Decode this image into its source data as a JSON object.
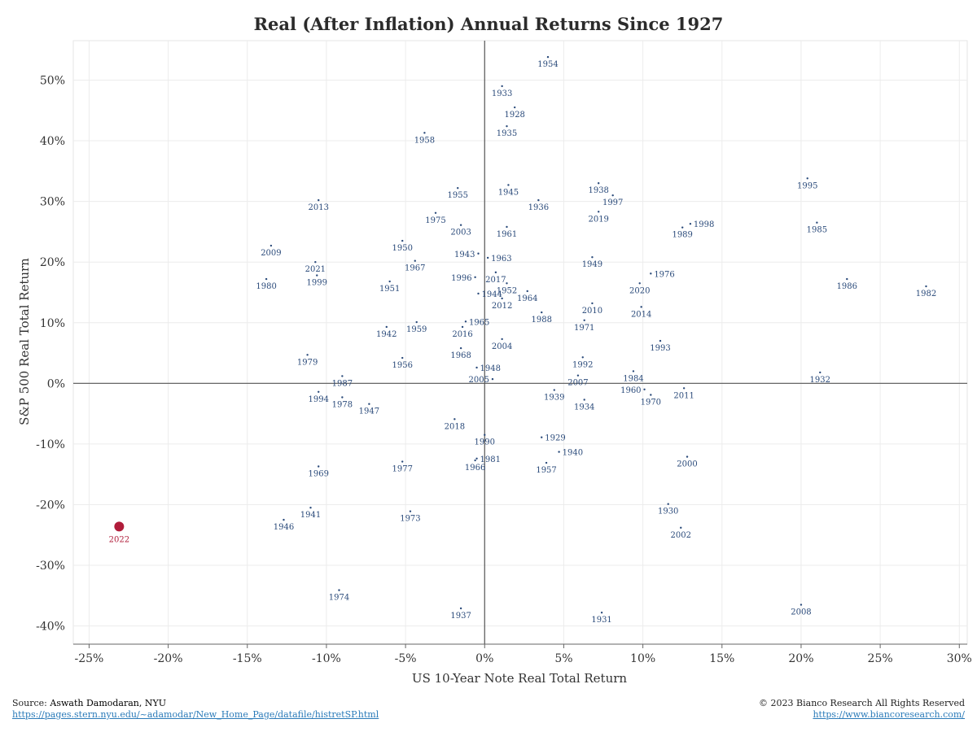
{
  "chart_data": {
    "type": "scatter",
    "title": "Real (After Inflation) Annual Returns Since 1927",
    "xlabel": "US 10-Year Note Real Total Return",
    "ylabel": "S&P 500 Real Total Return",
    "xlim": [
      -0.26,
      0.305
    ],
    "ylim": [
      -0.43,
      0.565
    ],
    "x_ticks": [
      -0.25,
      -0.2,
      -0.15,
      -0.1,
      -0.05,
      0,
      0.05,
      0.1,
      0.15,
      0.2,
      0.25,
      0.3
    ],
    "x_tick_labels": [
      "-25%",
      "-20%",
      "-15%",
      "-10%",
      "-5%",
      "0%",
      "5%",
      "10%",
      "15%",
      "20%",
      "25%",
      "30%"
    ],
    "y_ticks": [
      -0.4,
      -0.3,
      -0.2,
      -0.1,
      0,
      0.1,
      0.2,
      0.3,
      0.4,
      0.5
    ],
    "y_tick_labels": [
      "-40%",
      "-30%",
      "-20%",
      "-10%",
      "0%",
      "10%",
      "20%",
      "30%",
      "40%",
      "50%"
    ],
    "grid": true,
    "highlight": {
      "label": "2022",
      "x": -0.231,
      "y": -0.236,
      "color": "#b01c3a"
    },
    "point_color": "#2a4a7a",
    "points": [
      {
        "label": "1954",
        "x": 0.04,
        "y": 0.538,
        "lp": "below"
      },
      {
        "label": "1933",
        "x": 0.011,
        "y": 0.49,
        "lp": "below"
      },
      {
        "label": "1928",
        "x": 0.019,
        "y": 0.455,
        "lp": "below"
      },
      {
        "label": "1935",
        "x": 0.014,
        "y": 0.424,
        "lp": "below"
      },
      {
        "label": "1958",
        "x": -0.038,
        "y": 0.413,
        "lp": "below"
      },
      {
        "label": "1995",
        "x": 0.204,
        "y": 0.338,
        "lp": "below"
      },
      {
        "label": "1938",
        "x": 0.072,
        "y": 0.33,
        "lp": "below"
      },
      {
        "label": "1945",
        "x": 0.015,
        "y": 0.327,
        "lp": "below"
      },
      {
        "label": "1955",
        "x": -0.017,
        "y": 0.322,
        "lp": "below"
      },
      {
        "label": "1997",
        "x": 0.081,
        "y": 0.31,
        "lp": "below"
      },
      {
        "label": "1936",
        "x": 0.034,
        "y": 0.302,
        "lp": "below"
      },
      {
        "label": "2013",
        "x": -0.105,
        "y": 0.302,
        "lp": "below"
      },
      {
        "label": "1975",
        "x": -0.031,
        "y": 0.281,
        "lp": "below"
      },
      {
        "label": "2019",
        "x": 0.072,
        "y": 0.283,
        "lp": "below"
      },
      {
        "label": "1998",
        "x": 0.13,
        "y": 0.263,
        "lp": "right"
      },
      {
        "label": "1985",
        "x": 0.21,
        "y": 0.265,
        "lp": "below"
      },
      {
        "label": "2003",
        "x": -0.015,
        "y": 0.261,
        "lp": "below"
      },
      {
        "label": "1961",
        "x": 0.014,
        "y": 0.258,
        "lp": "below"
      },
      {
        "label": "1989",
        "x": 0.125,
        "y": 0.257,
        "lp": "below"
      },
      {
        "label": "2009",
        "x": -0.135,
        "y": 0.227,
        "lp": "below"
      },
      {
        "label": "1950",
        "x": -0.052,
        "y": 0.235,
        "lp": "below"
      },
      {
        "label": "1943",
        "x": -0.004,
        "y": 0.214,
        "lp": "left"
      },
      {
        "label": "1963",
        "x": 0.002,
        "y": 0.207,
        "lp": "right"
      },
      {
        "label": "1949",
        "x": 0.068,
        "y": 0.208,
        "lp": "below"
      },
      {
        "label": "2021",
        "x": -0.107,
        "y": 0.2,
        "lp": "below"
      },
      {
        "label": "1967",
        "x": -0.044,
        "y": 0.202,
        "lp": "below"
      },
      {
        "label": "1976",
        "x": 0.105,
        "y": 0.181,
        "lp": "right"
      },
      {
        "label": "1996",
        "x": -0.006,
        "y": 0.175,
        "lp": "left"
      },
      {
        "label": "2017",
        "x": 0.007,
        "y": 0.183,
        "lp": "below"
      },
      {
        "label": "1986",
        "x": 0.229,
        "y": 0.172,
        "lp": "below"
      },
      {
        "label": "1999",
        "x": -0.106,
        "y": 0.178,
        "lp": "below"
      },
      {
        "label": "1980",
        "x": -0.138,
        "y": 0.172,
        "lp": "below"
      },
      {
        "label": "1951",
        "x": -0.06,
        "y": 0.168,
        "lp": "below"
      },
      {
        "label": "1952",
        "x": 0.014,
        "y": 0.165,
        "lp": "below"
      },
      {
        "label": "2020",
        "x": 0.098,
        "y": 0.165,
        "lp": "below"
      },
      {
        "label": "1982",
        "x": 0.279,
        "y": 0.16,
        "lp": "below"
      },
      {
        "label": "1944",
        "x": -0.004,
        "y": 0.148,
        "lp": "right"
      },
      {
        "label": "1964",
        "x": 0.027,
        "y": 0.152,
        "lp": "below"
      },
      {
        "label": "2012",
        "x": 0.011,
        "y": 0.14,
        "lp": "below"
      },
      {
        "label": "2010",
        "x": 0.068,
        "y": 0.132,
        "lp": "below"
      },
      {
        "label": "2014",
        "x": 0.099,
        "y": 0.126,
        "lp": "below"
      },
      {
        "label": "1988",
        "x": 0.036,
        "y": 0.117,
        "lp": "below"
      },
      {
        "label": "1971",
        "x": 0.063,
        "y": 0.104,
        "lp": "below"
      },
      {
        "label": "1965",
        "x": -0.012,
        "y": 0.102,
        "lp": "right"
      },
      {
        "label": "1959",
        "x": -0.043,
        "y": 0.101,
        "lp": "below"
      },
      {
        "label": "1942",
        "x": -0.062,
        "y": 0.093,
        "lp": "below"
      },
      {
        "label": "2016",
        "x": -0.014,
        "y": 0.093,
        "lp": "below"
      },
      {
        "label": "2004",
        "x": 0.011,
        "y": 0.073,
        "lp": "below"
      },
      {
        "label": "1993",
        "x": 0.111,
        "y": 0.07,
        "lp": "below"
      },
      {
        "label": "1968",
        "x": -0.015,
        "y": 0.058,
        "lp": "below"
      },
      {
        "label": "1979",
        "x": -0.112,
        "y": 0.047,
        "lp": "below"
      },
      {
        "label": "1956",
        "x": -0.052,
        "y": 0.042,
        "lp": "below"
      },
      {
        "label": "1992",
        "x": 0.062,
        "y": 0.043,
        "lp": "below"
      },
      {
        "label": "1948",
        "x": -0.005,
        "y": 0.026,
        "lp": "right"
      },
      {
        "label": "1984",
        "x": 0.094,
        "y": 0.02,
        "lp": "below"
      },
      {
        "label": "1932",
        "x": 0.212,
        "y": 0.018,
        "lp": "below"
      },
      {
        "label": "2007",
        "x": 0.059,
        "y": 0.013,
        "lp": "below"
      },
      {
        "label": "1987",
        "x": -0.09,
        "y": 0.012,
        "lp": "below"
      },
      {
        "label": "2005",
        "x": 0.005,
        "y": 0.007,
        "lp": "left"
      },
      {
        "label": "1960",
        "x": 0.101,
        "y": -0.01,
        "lp": "left"
      },
      {
        "label": "1939",
        "x": 0.044,
        "y": -0.011,
        "lp": "below"
      },
      {
        "label": "2011",
        "x": 0.126,
        "y": -0.008,
        "lp": "below"
      },
      {
        "label": "1994",
        "x": -0.105,
        "y": -0.014,
        "lp": "below"
      },
      {
        "label": "1970",
        "x": 0.105,
        "y": -0.019,
        "lp": "below"
      },
      {
        "label": "1978",
        "x": -0.09,
        "y": -0.023,
        "lp": "below"
      },
      {
        "label": "1934",
        "x": 0.063,
        "y": -0.027,
        "lp": "below"
      },
      {
        "label": "1947",
        "x": -0.073,
        "y": -0.034,
        "lp": "below"
      },
      {
        "label": "2018",
        "x": -0.019,
        "y": -0.059,
        "lp": "below"
      },
      {
        "label": "1929",
        "x": 0.036,
        "y": -0.089,
        "lp": "right"
      },
      {
        "label": "1990",
        "x": 0.0,
        "y": -0.085,
        "lp": "below"
      },
      {
        "label": "1940",
        "x": 0.047,
        "y": -0.113,
        "lp": "right"
      },
      {
        "label": "1981",
        "x": -0.005,
        "y": -0.124,
        "lp": "right"
      },
      {
        "label": "2000",
        "x": 0.128,
        "y": -0.121,
        "lp": "below"
      },
      {
        "label": "1977",
        "x": -0.052,
        "y": -0.129,
        "lp": "below"
      },
      {
        "label": "1966",
        "x": -0.006,
        "y": -0.127,
        "lp": "below"
      },
      {
        "label": "1957",
        "x": 0.039,
        "y": -0.131,
        "lp": "below"
      },
      {
        "label": "1969",
        "x": -0.105,
        "y": -0.137,
        "lp": "below"
      },
      {
        "label": "1930",
        "x": 0.116,
        "y": -0.199,
        "lp": "below"
      },
      {
        "label": "1941",
        "x": -0.11,
        "y": -0.205,
        "lp": "below"
      },
      {
        "label": "1973",
        "x": -0.047,
        "y": -0.211,
        "lp": "below"
      },
      {
        "label": "1946",
        "x": -0.127,
        "y": -0.225,
        "lp": "below"
      },
      {
        "label": "2002",
        "x": 0.124,
        "y": -0.238,
        "lp": "below"
      },
      {
        "label": "1974",
        "x": -0.092,
        "y": -0.341,
        "lp": "below"
      },
      {
        "label": "1937",
        "x": -0.015,
        "y": -0.371,
        "lp": "below"
      },
      {
        "label": "2008",
        "x": 0.2,
        "y": -0.365,
        "lp": "below"
      },
      {
        "label": "1931",
        "x": 0.074,
        "y": -0.378,
        "lp": "below"
      }
    ]
  },
  "footer": {
    "source_prefix": "Source: ",
    "source_name": "Aswath Damodaran, NYU",
    "source_url": "https://pages.stern.nyu.edu/~adamodar/New_Home_Page/datafile/histretSP.html",
    "copyright": "© 2023 Bianco Research All Rights Reserved",
    "site_url": "https://www.biancoresearch.com/"
  }
}
